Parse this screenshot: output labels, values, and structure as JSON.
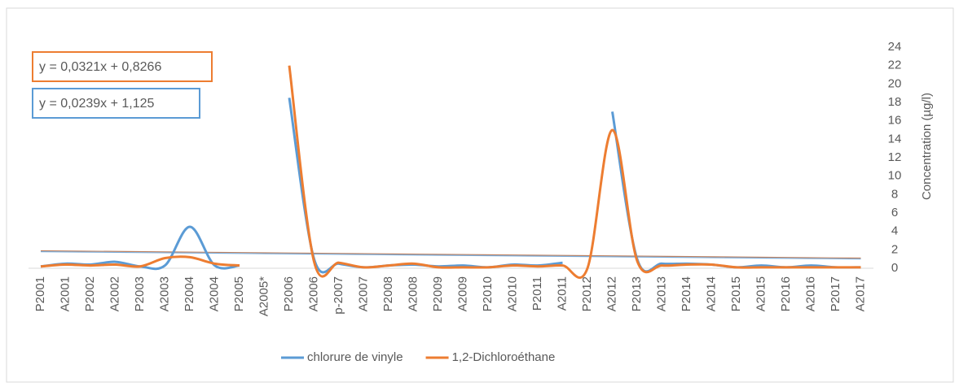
{
  "chart_data": {
    "type": "line",
    "categories": [
      "P2001",
      "A2001",
      "P2002",
      "A2002",
      "P2003",
      "A2003",
      "P2004",
      "A2004",
      "P2005",
      "A2005*",
      "P2006",
      "A2006",
      "p-2007",
      "A2007",
      "P2008",
      "A2008",
      "P2009",
      "A2009",
      "P2010",
      "A2010",
      "P2011",
      "A2011",
      "P2012",
      "A2012",
      "P2013",
      "A2013",
      "P2014",
      "A2014",
      "P2015",
      "A2015",
      "P2016",
      "A2016",
      "P2017",
      "A2017"
    ],
    "series": [
      {
        "name": "chlorure de vinyle",
        "color": "#5b9bd5",
        "values": [
          0.2,
          0.5,
          0.4,
          0.7,
          0.2,
          0.3,
          4.5,
          0.3,
          0.3,
          null,
          18.5,
          1.0,
          0.5,
          0.1,
          0.3,
          0.4,
          0.2,
          0.3,
          0.1,
          0.4,
          0.3,
          0.6,
          null,
          17,
          1.0,
          0.5,
          0.5,
          0.4,
          0.1,
          0.3,
          0.1,
          0.3,
          0.1,
          0.1
        ]
      },
      {
        "name": "1,2-Dichloroéthane",
        "color": "#ed7d31",
        "values": [
          0.2,
          0.4,
          0.3,
          0.4,
          0.2,
          1.1,
          1.2,
          0.5,
          0.3,
          null,
          22,
          0.7,
          0.6,
          0.1,
          0.3,
          0.5,
          0.1,
          0.1,
          0.1,
          0.3,
          0.2,
          0.3,
          0,
          15,
          0.8,
          0.3,
          0.4,
          0.4,
          0.1,
          0.1,
          0.1,
          0.1,
          0.1,
          0.1
        ]
      }
    ],
    "trendlines": [
      {
        "label": "y = 0,0321x + 0,8266",
        "color": "#ed7d31",
        "values": [
          1.9,
          1.1
        ]
      },
      {
        "label": "y = 0,0239x + 1,125",
        "color": "#5b9bd5",
        "values": [
          1.8,
          1.0
        ]
      }
    ],
    "y_axis_label": "Concentration (µg/l)",
    "ylim": [
      0,
      24
    ],
    "yticks": [
      0,
      2,
      4,
      6,
      8,
      10,
      12,
      14,
      16,
      18,
      20,
      22,
      24
    ]
  }
}
